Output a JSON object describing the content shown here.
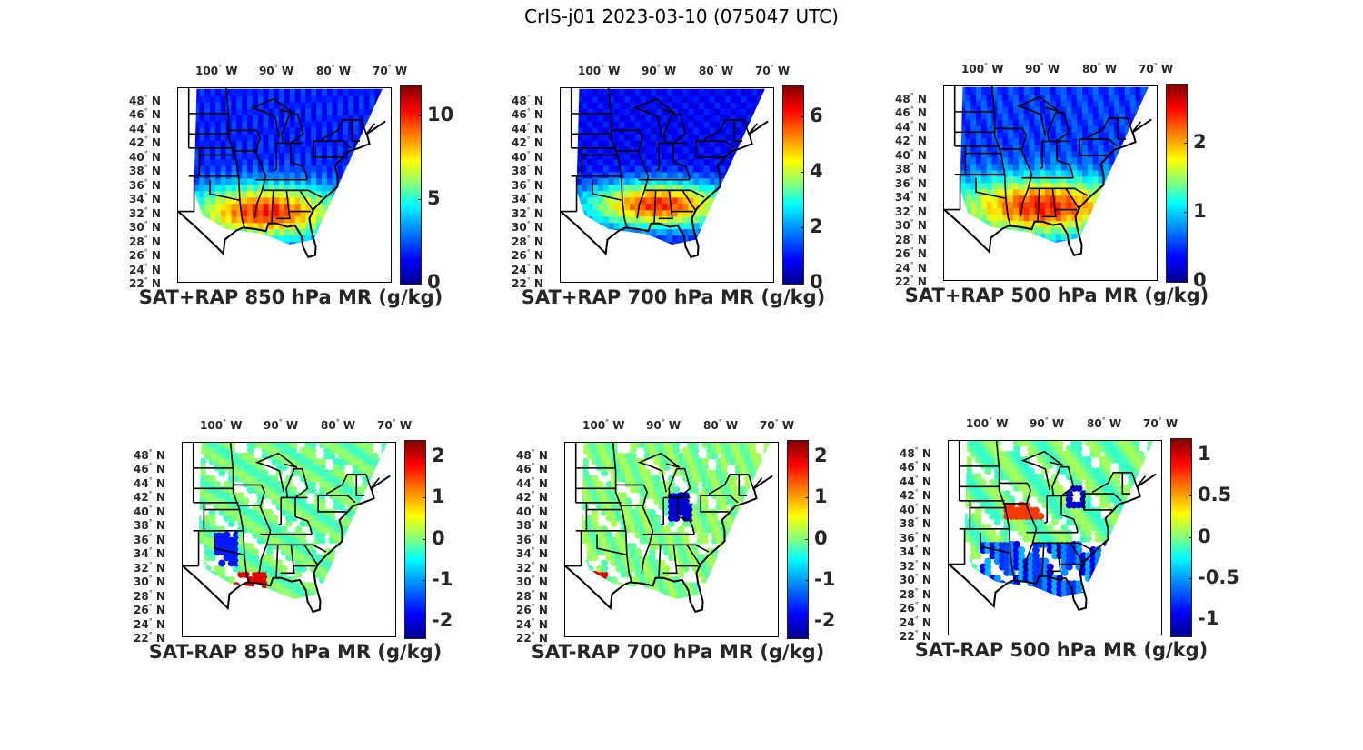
{
  "figure": {
    "title": "CrIS-j01 2023-03-10 (075047 UTC)"
  },
  "chart_data": [
    {
      "type": "heatmap",
      "id": "p850sum",
      "title": "SAT+RAP 850 hPa MR (g/kg)",
      "lon_ticks": [
        "100",
        "90",
        "80",
        "70"
      ],
      "lon_suffix": "W",
      "lat_ticks": [
        "48",
        "46",
        "44",
        "42",
        "40",
        "38",
        "36",
        "34",
        "32",
        "30",
        "28",
        "26",
        "24",
        "22"
      ],
      "lat_suffix": "N",
      "colorbar": {
        "range": [
          0,
          11.8
        ],
        "ticks": [
          0,
          5,
          10
        ],
        "tick_labels": [
          "0",
          "5",
          "10"
        ]
      },
      "summary": "High moisture (8-11 g/kg) over TX, LA, MS, AL, GA, TN; low (1-3) across northern plains and Great Lakes"
    },
    {
      "type": "heatmap",
      "id": "p700sum",
      "title": "SAT+RAP 700 hPa MR (g/kg)",
      "lon_ticks": [
        "100",
        "90",
        "80",
        "70"
      ],
      "lon_suffix": "W",
      "lat_ticks": [
        "48",
        "46",
        "44",
        "42",
        "40",
        "38",
        "36",
        "34",
        "32",
        "30",
        "28",
        "26",
        "24",
        "22"
      ],
      "lat_suffix": "N",
      "colorbar": {
        "range": [
          0,
          7.1
        ],
        "ticks": [
          0,
          2,
          4,
          6
        ],
        "tick_labels": [
          "0",
          "2",
          "4",
          "6"
        ]
      },
      "summary": "Band of 5-6.5 g/kg from TX through TN/GA; low values north"
    },
    {
      "type": "heatmap",
      "id": "p500sum",
      "title": "SAT+RAP 500 hPa MR (g/kg)",
      "lon_ticks": [
        "100",
        "90",
        "80",
        "70"
      ],
      "lon_suffix": "W",
      "lat_ticks": [
        "48",
        "46",
        "44",
        "42",
        "40",
        "38",
        "36",
        "34",
        "32",
        "30",
        "28",
        "26",
        "24",
        "22"
      ],
      "lat_suffix": "N",
      "colorbar": {
        "range": [
          0,
          2.85
        ],
        "ticks": [
          0,
          1,
          2
        ],
        "tick_labels": [
          "0",
          "1",
          "2"
        ]
      },
      "summary": "Peak ~2.5 g/kg over AR, MS, AL; 1.5-2 over TX, OK, VA; <0.5 north"
    },
    {
      "type": "heatmap",
      "id": "p850diff",
      "title": "SAT-RAP 850 hPa MR (g/kg)",
      "lon_ticks": [
        "100",
        "90",
        "80",
        "70"
      ],
      "lon_suffix": "W",
      "lat_ticks": [
        "48",
        "46",
        "44",
        "42",
        "40",
        "38",
        "36",
        "34",
        "32",
        "30",
        "28",
        "26",
        "24",
        "22"
      ],
      "lat_suffix": "N",
      "colorbar": {
        "range": [
          -2.4,
          2.4
        ],
        "ticks": [
          -2,
          -1,
          0,
          1,
          2
        ],
        "tick_labels": [
          "-2",
          "-1",
          "0",
          "1",
          "2"
        ]
      },
      "summary": "Mostly near 0; positive ~2 along TX/LA coast; negative -2 scattered in TX, OK, LA"
    },
    {
      "type": "heatmap",
      "id": "p700diff",
      "title": "SAT-RAP 700 hPa MR (g/kg)",
      "lon_ticks": [
        "100",
        "90",
        "80",
        "70"
      ],
      "lon_suffix": "W",
      "lat_ticks": [
        "48",
        "46",
        "44",
        "42",
        "40",
        "38",
        "36",
        "34",
        "32",
        "30",
        "28",
        "26",
        "24",
        "22"
      ],
      "lat_suffix": "N",
      "colorbar": {
        "range": [
          -2.4,
          2.4
        ],
        "ticks": [
          -2,
          -1,
          0,
          1,
          2
        ],
        "tick_labels": [
          "-2",
          "-1",
          "0",
          "1",
          "2"
        ]
      },
      "summary": "Near 0 over plains; -2 over IN/OH; +2 spots in south TX and FL"
    },
    {
      "type": "heatmap",
      "id": "p500diff",
      "title": "SAT-RAP 500 hPa MR (g/kg)",
      "lon_ticks": [
        "100",
        "90",
        "80",
        "70"
      ],
      "lon_suffix": "W",
      "lat_ticks": [
        "48",
        "46",
        "44",
        "42",
        "40",
        "38",
        "36",
        "34",
        "32",
        "30",
        "28",
        "26",
        "24",
        "22"
      ],
      "lat_suffix": "N",
      "colorbar": {
        "range": [
          -1.2,
          1.2
        ],
        "ticks": [
          -1,
          -0.5,
          0,
          0.5,
          1
        ],
        "tick_labels": [
          "-1",
          "-0.5",
          "0",
          "0.5",
          "1"
        ]
      },
      "summary": "Positive ~0.8 over MO/IL; negative -1 over OH/PA and southern states"
    }
  ]
}
